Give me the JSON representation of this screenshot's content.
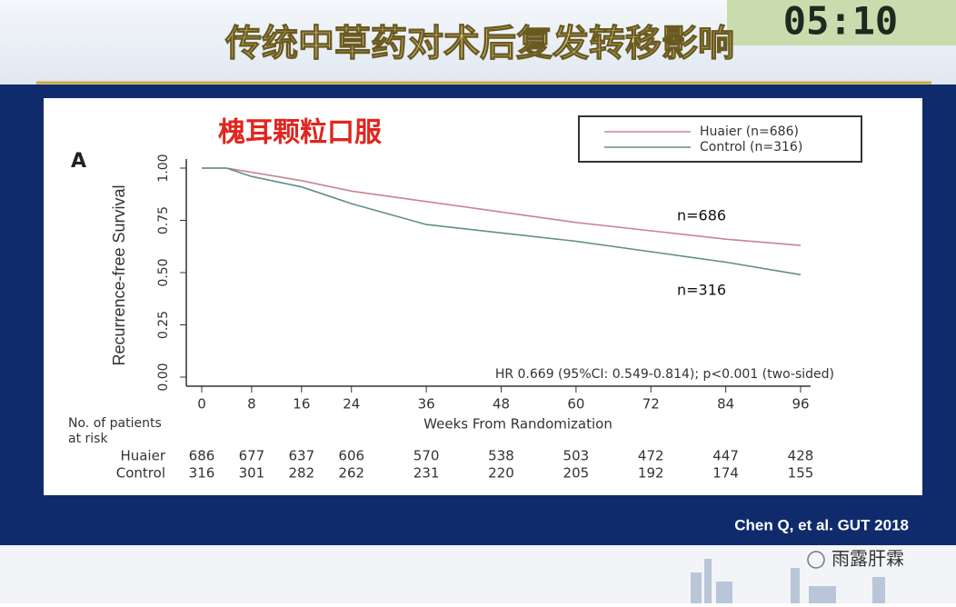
{
  "header": {
    "title": "传统中草药对术后复发转移影响",
    "timer": "05:10"
  },
  "chart_data": {
    "type": "line",
    "panel_label": "A",
    "subtitle": "槐耳颗粒口服",
    "ylabel": "Recurrence-free Survival",
    "xlabel": "Weeks From Randomization",
    "annotations": [
      "n=686",
      "n=316",
      "HR 0.669 (95%CI: 0.549-0.814); p<0.001 (two-sided)"
    ],
    "x": [
      0,
      4,
      8,
      16,
      24,
      36,
      48,
      60,
      72,
      84,
      96
    ],
    "series": [
      {
        "name": "Huaier (n=686)",
        "color": "#c9848f",
        "values": [
          1.0,
          1.0,
          0.98,
          0.94,
          0.89,
          0.84,
          0.79,
          0.74,
          0.7,
          0.66,
          0.63
        ]
      },
      {
        "name": "Control (n=316)",
        "color": "#5f8f8c",
        "values": [
          1.0,
          1.0,
          0.96,
          0.91,
          0.83,
          0.73,
          0.69,
          0.65,
          0.6,
          0.55,
          0.49
        ]
      }
    ],
    "xlim": [
      0,
      96
    ],
    "xticks": [
      0,
      8,
      16,
      24,
      36,
      48,
      60,
      72,
      84,
      96
    ],
    "ylim": [
      0,
      1
    ],
    "yticks": [
      {
        "value": 0,
        "label": "0.00"
      },
      0.25,
      {
        "value": 0.5,
        "label": "0.50"
      },
      0.75,
      {
        "value": 1,
        "label": "1.00"
      }
    ],
    "legend": "top-right",
    "risk_table": {
      "title": [
        "No. of patients",
        "at risk"
      ],
      "rows": [
        {
          "name": "Huaier",
          "values": [
            686,
            677,
            637,
            606,
            570,
            538,
            503,
            472,
            447,
            428
          ]
        },
        {
          "name": "Control",
          "values": [
            316,
            301,
            282,
            262,
            231,
            220,
            205,
            192,
            174,
            155
          ]
        }
      ]
    }
  },
  "footer": {
    "citation": "Chen Q, et al. GUT 2018",
    "watermark": "雨露肝霖"
  }
}
